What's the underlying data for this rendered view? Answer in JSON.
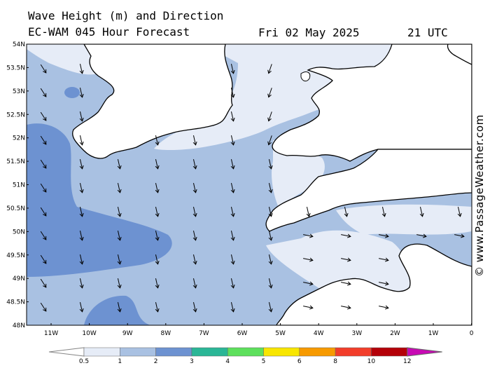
{
  "header": {
    "line1": "Wave Height (m) and Direction",
    "line2": "EC-WAM 045 Hour Forecast",
    "date": "Fri 02 May 2025",
    "time": "21 UTC"
  },
  "credit": "© www.PassageWeather.com",
  "map": {
    "lat_labels": [
      "54N",
      "53.5N",
      "53N",
      "52.5N",
      "52N",
      "51.5N",
      "51N",
      "50.5N",
      "50N",
      "49.5N",
      "49N",
      "48.5N",
      "48N"
    ],
    "lon_labels": [
      "11W",
      "10W",
      "9W",
      "8W",
      "7W",
      "6W",
      "5W",
      "4W",
      "3W",
      "2W",
      "1W",
      "0"
    ],
    "land_color": "#ffffff",
    "coast_color": "#000000"
  },
  "legend": {
    "labels": [
      "0.5",
      "1",
      "2",
      "3",
      "4",
      "5",
      "6",
      "8",
      "10",
      "12"
    ],
    "colors": [
      "#e6ecf7",
      "#a9c1e2",
      "#6d92d1",
      "#2ab696",
      "#5de05c",
      "#f8e600",
      "#f79a00",
      "#f23d2a",
      "#b40008",
      "#c80ab4"
    ]
  }
}
